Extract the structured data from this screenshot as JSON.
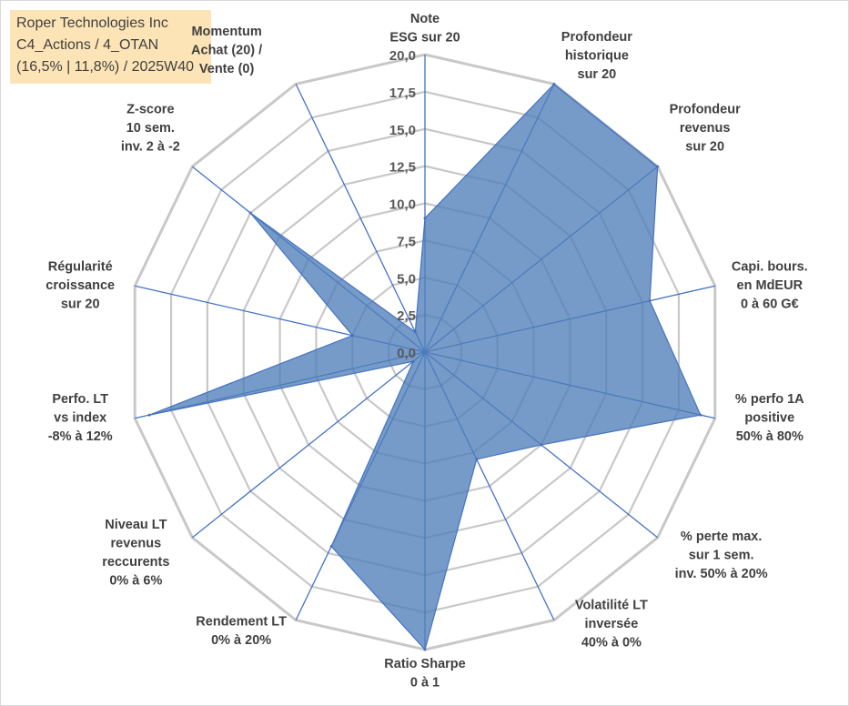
{
  "title_box": {
    "lines": [
      "Roper Technologies Inc",
      "C4_Actions / 4_OTAN",
      "(16,5% | 11,8%) / 2025W40"
    ]
  },
  "chart_data": {
    "type": "radar",
    "rmin": 0,
    "rmax": 20,
    "ticks": [
      "0,0",
      "2,5",
      "5,0",
      "7,5",
      "10,0",
      "12,5",
      "15,0",
      "17,5",
      "20,0"
    ],
    "axes": [
      {
        "label": [
          "Note",
          "ESG sur 20"
        ],
        "value": 9.0
      },
      {
        "label": [
          "Profondeur",
          "historique",
          "sur 20"
        ],
        "value": 20.0
      },
      {
        "label": [
          "Profondeur",
          "revenus",
          "sur 20"
        ],
        "value": 20.0
      },
      {
        "label": [
          "Capi. bours.",
          "en MdEUR",
          "0 à 60 G€"
        ],
        "value": 15.5
      },
      {
        "label": [
          "% perfo 1A",
          "positive",
          "50% à 80%"
        ],
        "value": 19.0
      },
      {
        "label": [
          "% perte max.",
          "sur 1 sem.",
          "inv. 50% à 20%"
        ],
        "value": 10.0
      },
      {
        "label": [
          "Volatilité LT",
          "inversée",
          "40% à 0%"
        ],
        "value": 8.0
      },
      {
        "label": [
          "Ratio Sharpe",
          "0 à 1"
        ],
        "value": 20.0
      },
      {
        "label": [
          "Rendement LT",
          "0% à 20%"
        ],
        "value": 14.5
      },
      {
        "label": [
          "Niveau LT",
          "revenus",
          "reccurents",
          "0% à 6%"
        ],
        "value": 1.0
      },
      {
        "label": [
          "Perfo. LT",
          "vs index",
          "-8% à 12%"
        ],
        "value": 19.0
      },
      {
        "label": [
          "Régularité",
          "croissance",
          "sur 20"
        ],
        "value": 5.0
      },
      {
        "label": [
          "Z-score",
          "10 sem.",
          "inv. 2 à -2"
        ],
        "value": 15.0
      },
      {
        "label": [
          "Momentum",
          "Achat (20) /",
          "Vente (0)"
        ],
        "value": 1.5
      }
    ],
    "series": [
      {
        "name": "Roper Technologies Inc",
        "color": "#4f7fb8"
      }
    ]
  },
  "colors": {
    "grid": "#c8c8c8",
    "axis": "#4472c4",
    "fill": "#4f7fb8",
    "title_bg": "#fce4b6"
  }
}
